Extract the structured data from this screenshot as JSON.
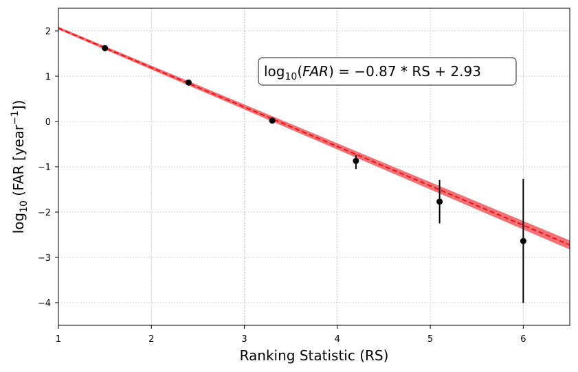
{
  "chart_data": {
    "type": "scatter",
    "xlabel": "Ranking Statistic (RS)",
    "ylabel": {
      "prefix": "log",
      "sub": "10",
      "middle": " (FAR [year",
      "sup": "−1",
      "suffix": "])"
    },
    "xlim": [
      1,
      6.5
    ],
    "ylim": [
      -4.5,
      2.5
    ],
    "xticks": [
      1,
      2,
      3,
      4,
      5,
      6
    ],
    "yticks": [
      -4,
      -3,
      -2,
      -1,
      0,
      1,
      2
    ],
    "grid": true,
    "grid_style": "dotted",
    "points": [
      {
        "x": 1.5,
        "y": 1.62,
        "yerr_low": 0.0,
        "yerr_high": 0.0
      },
      {
        "x": 2.4,
        "y": 0.86,
        "yerr_low": 0.0,
        "yerr_high": 0.0
      },
      {
        "x": 3.3,
        "y": 0.02,
        "yerr_low": 0.0,
        "yerr_high": 0.0
      },
      {
        "x": 4.2,
        "y": -0.87,
        "yerr_low": 0.18,
        "yerr_high": 0.13
      },
      {
        "x": 5.1,
        "y": -1.77,
        "yerr_low": 0.48,
        "yerr_high": 0.48
      },
      {
        "x": 6.0,
        "y": -2.64,
        "yerr_low": 1.37,
        "yerr_high": 1.37
      }
    ],
    "fit": {
      "slope": -0.87,
      "intercept": 2.93,
      "band_halfwidth_at_xmin": 0.03,
      "band_halfwidth_at_xmax": 0.1,
      "line_color": "#e8141a",
      "band_color": "#f0585c"
    },
    "point_color": "#000000",
    "annotation": {
      "text": "log₁₀(FAR) = −0.87 * RS + 2.93",
      "parts": {
        "log": "log",
        "sub": "10",
        "open": "(",
        "italic": "FAR",
        "rest": ") = −0.87 * RS + 2.93"
      },
      "position": "upper-right"
    }
  }
}
